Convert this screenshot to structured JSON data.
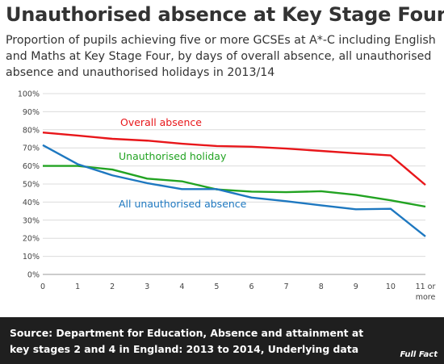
{
  "title": "Unauthorised absence at Key Stage Four",
  "subtitle": "Proportion of pupils achieving five or more GCSEs at A*-C including English and Maths at Key Stage Four, by days of overall absence, all unauthorised absence and unauthorised holidays in 2013/14",
  "source": "Source: Department for Education, Absence and attainment at key stages 2 and 4 in England: 2013 to 2014, Underlying data",
  "logo_text": "Full Fact",
  "chart_data": {
    "type": "line",
    "title": "",
    "xlabel": "",
    "ylabel": "",
    "x": [
      0,
      1,
      2,
      3,
      4,
      5,
      6,
      7,
      8,
      9,
      10,
      11
    ],
    "x_tick_labels": [
      "0",
      "1",
      "2",
      "3",
      "4",
      "5",
      "6",
      "7",
      "8",
      "9",
      "10",
      "11 or",
      "more"
    ],
    "y_tick_labels": [
      "0%",
      "10%",
      "20%",
      "30%",
      "40%",
      "50%",
      "60%",
      "70%",
      "80%",
      "90%",
      "100%"
    ],
    "ylim": [
      0,
      100
    ],
    "grid": true,
    "series": [
      {
        "name": "Overall absence",
        "color": "#e8161a",
        "values": [
          78.5,
          76.8,
          75,
          74,
          72.3,
          71,
          70.6,
          69.6,
          68.3,
          67,
          65.8,
          49.5
        ]
      },
      {
        "name": "Unauthorised holiday",
        "color": "#22a322",
        "values": [
          60,
          60,
          58,
          53,
          51.5,
          47,
          45.8,
          45.5,
          46,
          44,
          41,
          37.5
        ]
      },
      {
        "name": "All unauthorised absence",
        "color": "#1e78c0",
        "values": [
          71.5,
          61,
          54.8,
          50.5,
          47.2,
          47.2,
          42.5,
          40.5,
          38.2,
          36,
          36.3,
          21
        ]
      }
    ]
  }
}
